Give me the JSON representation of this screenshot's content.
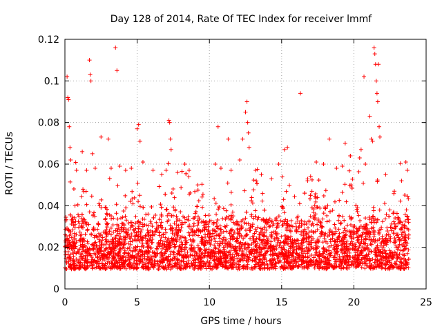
{
  "chart_data": {
    "type": "scatter",
    "title": "Day 128 of 2014, Rate Of TEC Index for receiver lmmf",
    "xlabel": "GPS time / hours",
    "ylabel": "ROTI / TECUs",
    "xlim": [
      0,
      25
    ],
    "ylim": [
      0,
      0.12
    ],
    "xticks": [
      0,
      5,
      10,
      15,
      20,
      25
    ],
    "xtick_labels": [
      "0",
      "5",
      "10",
      "15",
      "20",
      "25"
    ],
    "yticks": [
      0,
      0.02,
      0.04,
      0.06,
      0.08,
      0.1,
      0.12
    ],
    "ytick_labels": [
      "0",
      "0.02",
      "0.04",
      "0.06",
      "0.08",
      "0.1",
      "0.12"
    ],
    "grid": true,
    "marker": "+",
    "color": "#ff0000",
    "series": [
      {
        "name": "ROTI",
        "x_range": [
          0.0,
          23.8
        ],
        "typical_range": [
          0.005,
          0.035
        ],
        "points": [
          [
            0.15,
            0.102
          ],
          [
            0.2,
            0.092
          ],
          [
            0.25,
            0.091
          ],
          [
            0.3,
            0.078
          ],
          [
            0.35,
            0.068
          ],
          [
            0.4,
            0.062
          ],
          [
            0.8,
            0.057
          ],
          [
            1.2,
            0.066
          ],
          [
            1.5,
            0.057
          ],
          [
            1.7,
            0.11
          ],
          [
            1.75,
            0.103
          ],
          [
            1.8,
            0.1
          ],
          [
            1.9,
            0.065
          ],
          [
            2.1,
            0.058
          ],
          [
            2.5,
            0.073
          ],
          [
            3.0,
            0.072
          ],
          [
            3.2,
            0.058
          ],
          [
            3.5,
            0.116
          ],
          [
            3.6,
            0.105
          ],
          [
            3.8,
            0.059
          ],
          [
            4.2,
            0.057
          ],
          [
            4.6,
            0.058
          ],
          [
            5.0,
            0.077
          ],
          [
            5.1,
            0.079
          ],
          [
            5.2,
            0.071
          ],
          [
            5.4,
            0.061
          ],
          [
            6.1,
            0.057
          ],
          [
            6.7,
            0.055
          ],
          [
            7.0,
            0.057
          ],
          [
            7.2,
            0.081
          ],
          [
            7.25,
            0.08
          ],
          [
            7.3,
            0.072
          ],
          [
            7.35,
            0.067
          ],
          [
            7.8,
            0.056
          ],
          [
            8.3,
            0.06
          ],
          [
            8.6,
            0.057
          ],
          [
            9.2,
            0.05
          ],
          [
            10.4,
            0.06
          ],
          [
            10.6,
            0.078
          ],
          [
            10.8,
            0.058
          ],
          [
            11.3,
            0.072
          ],
          [
            11.5,
            0.057
          ],
          [
            12.1,
            0.062
          ],
          [
            12.3,
            0.072
          ],
          [
            12.5,
            0.085
          ],
          [
            12.6,
            0.09
          ],
          [
            12.65,
            0.08
          ],
          [
            12.7,
            0.075
          ],
          [
            12.75,
            0.068
          ],
          [
            13.2,
            0.057
          ],
          [
            13.6,
            0.055
          ],
          [
            14.3,
            0.053
          ],
          [
            14.8,
            0.06
          ],
          [
            15.2,
            0.067
          ],
          [
            15.4,
            0.068
          ],
          [
            16.3,
            0.094
          ],
          [
            16.8,
            0.052
          ],
          [
            17.4,
            0.061
          ],
          [
            17.9,
            0.06
          ],
          [
            18.3,
            0.072
          ],
          [
            18.8,
            0.058
          ],
          [
            19.2,
            0.059
          ],
          [
            19.4,
            0.07
          ],
          [
            19.8,
            0.05
          ],
          [
            20.4,
            0.063
          ],
          [
            20.5,
            0.067
          ],
          [
            20.7,
            0.102
          ],
          [
            20.8,
            0.06
          ],
          [
            21.1,
            0.083
          ],
          [
            21.2,
            0.072
          ],
          [
            21.3,
            0.071
          ],
          [
            21.4,
            0.116
          ],
          [
            21.45,
            0.113
          ],
          [
            21.5,
            0.108
          ],
          [
            21.55,
            0.1
          ],
          [
            21.6,
            0.094
          ],
          [
            21.65,
            0.09
          ],
          [
            21.7,
            0.108
          ],
          [
            21.75,
            0.078
          ],
          [
            21.8,
            0.073
          ],
          [
            22.2,
            0.055
          ],
          [
            22.8,
            0.047
          ],
          [
            23.3,
            0.052
          ],
          [
            23.6,
            0.061
          ],
          [
            23.7,
            0.057
          ]
        ]
      }
    ]
  }
}
